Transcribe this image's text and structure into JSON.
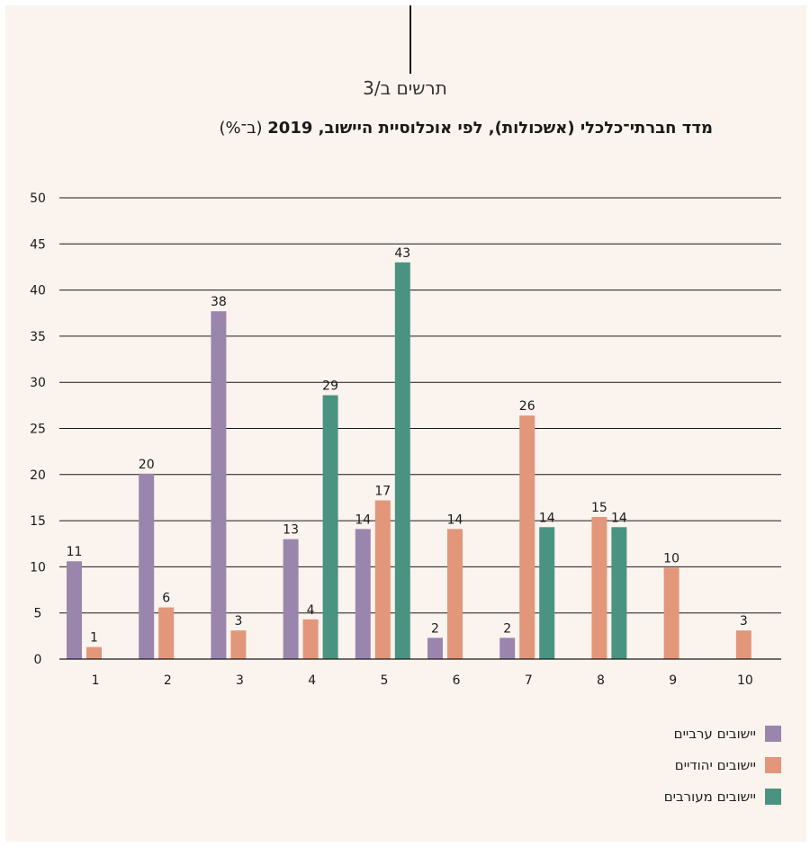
{
  "header": {
    "figure_label": "תרשים ב/3",
    "title_bold": "מדד חברתי־כלכלי (אשכולות), לפי אוכלוסיית היישוב, 2019",
    "title_unit": "(ב־%)"
  },
  "colors": {
    "background": "#fbf3ee",
    "arab": "#9a86ad",
    "jewish": "#e2967a",
    "mixed": "#4a9380"
  },
  "chart_data": {
    "type": "bar",
    "categories": [
      "1",
      "2",
      "3",
      "4",
      "5",
      "6",
      "7",
      "8",
      "9",
      "10"
    ],
    "series": [
      {
        "name": "יישובים ערביים",
        "color": "#9a86ad",
        "values": [
          11,
          20,
          38,
          13,
          14,
          2,
          2,
          null,
          null,
          null
        ],
        "display": [
          10.6,
          20.1,
          37.7,
          13,
          14.1,
          2.3,
          2.3,
          null,
          null,
          null
        ]
      },
      {
        "name": "יישובים יהודיים",
        "color": "#e2967a",
        "values": [
          1,
          6,
          3,
          4,
          17,
          14,
          26,
          15,
          10,
          3
        ],
        "display": [
          1.3,
          5.6,
          3.1,
          4.3,
          17.2,
          14.1,
          26.4,
          15.4,
          9.9,
          3.1
        ]
      },
      {
        "name": "יישובים מעורבים",
        "color": "#4a9380",
        "values": [
          null,
          null,
          null,
          29,
          43,
          null,
          14,
          14,
          null,
          null
        ],
        "display": [
          null,
          null,
          null,
          28.6,
          43,
          null,
          14.3,
          14.3,
          null,
          null
        ]
      }
    ],
    "yticks": [
      "0",
      "5",
      "10",
      "15",
      "20",
      "25",
      "30",
      "35",
      "40",
      "45",
      "50"
    ],
    "ylim": [
      0,
      50
    ],
    "grid": true,
    "legend_position": "bottom-right"
  }
}
